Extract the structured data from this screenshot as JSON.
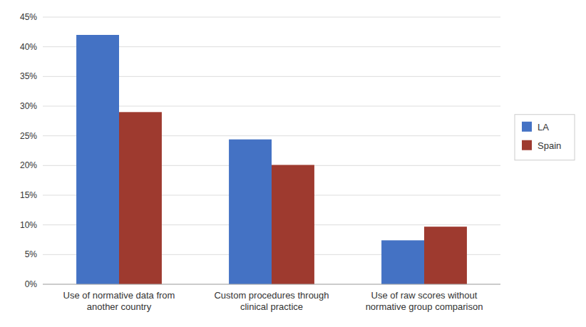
{
  "chart_data": {
    "type": "bar",
    "categories": [
      "Use of normative data from\nanother country",
      "Custom procedures through\nclinical practice",
      "Use of raw scores without\nnormative group comparison"
    ],
    "series": [
      {
        "name": "LA",
        "color": "#4472C4",
        "values": [
          0.42,
          0.244,
          0.074
        ]
      },
      {
        "name": "Spain",
        "color": "#9E3A2F",
        "values": [
          0.29,
          0.201,
          0.097
        ]
      }
    ],
    "ylim": [
      0,
      0.45
    ],
    "yticks": [
      {
        "value": 0.0,
        "label": "0%"
      },
      {
        "value": 0.05,
        "label": "5%"
      },
      {
        "value": 0.1,
        "label": "10%"
      },
      {
        "value": 0.15,
        "label": "15%"
      },
      {
        "value": 0.2,
        "label": "20%"
      },
      {
        "value": 0.25,
        "label": "25%"
      },
      {
        "value": 0.3,
        "label": "30%"
      },
      {
        "value": 0.35,
        "label": "35%"
      },
      {
        "value": 0.4,
        "label": "40%"
      },
      {
        "value": 0.45,
        "label": "45%"
      }
    ],
    "grid": true,
    "legend": "right"
  }
}
